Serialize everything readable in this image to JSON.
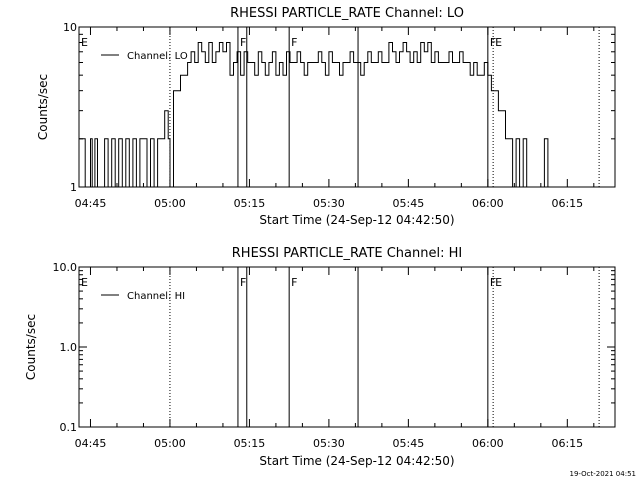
{
  "footer": {
    "timestamp": "19-Oct-2021 04:51"
  },
  "chart_data": [
    {
      "type": "line",
      "title": "RHESSI PARTICLE_RATE Channel: LO",
      "xlabel": "Start Time (24-Sep-12 04:42:50)",
      "ylabel": "Counts/sec",
      "y_scale": "log",
      "ylim": [
        1,
        10
      ],
      "y_ticks": [
        "1",
        "10"
      ],
      "xlim": [
        "04:42:50",
        "06:24:00"
      ],
      "x_ticks": [
        "04:45",
        "05:00",
        "05:15",
        "05:30",
        "05:45",
        "06:00",
        "06:15"
      ],
      "legend": {
        "placement": "top-left",
        "entries": [
          "Channel: LO"
        ]
      },
      "grid": false,
      "series": [
        {
          "name": "Channel: LO",
          "x": [
            "04:42:50",
            "04:43:30",
            "04:44:00",
            "04:44:30",
            "04:45:00",
            "04:45:20",
            "04:45:50",
            "04:46:20",
            "04:47:00",
            "04:47:40",
            "04:48:20",
            "04:49:00",
            "04:49:40",
            "04:50:20",
            "04:51:00",
            "04:51:40",
            "04:52:20",
            "04:53:00",
            "04:53:40",
            "04:54:20",
            "04:55:00",
            "04:55:40",
            "04:56:20",
            "04:57:00",
            "04:57:40",
            "04:58:20",
            "04:59:00",
            "04:59:40",
            "05:00:00",
            "05:00:40",
            "05:01:20",
            "05:02:00",
            "05:02:40",
            "05:03:20",
            "05:04:00",
            "05:04:40",
            "05:05:20",
            "05:06:00",
            "05:06:40",
            "05:07:20",
            "05:08:00",
            "05:08:40",
            "05:09:20",
            "05:10:00",
            "05:10:40",
            "05:11:20",
            "05:12:00",
            "05:12:40",
            "05:13:20",
            "05:14:00",
            "05:14:40",
            "05:15:20",
            "05:16:00",
            "05:16:40",
            "05:17:20",
            "05:18:00",
            "05:18:40",
            "05:19:20",
            "05:20:00",
            "05:20:40",
            "05:21:20",
            "05:22:00",
            "05:22:40",
            "05:23:20",
            "05:24:00",
            "05:24:40",
            "05:25:20",
            "05:26:00",
            "05:26:40",
            "05:27:20",
            "05:28:00",
            "05:28:40",
            "05:29:20",
            "05:30:00",
            "05:30:40",
            "05:31:20",
            "05:32:00",
            "05:32:40",
            "05:33:20",
            "05:34:00",
            "05:34:40",
            "05:35:20",
            "05:36:00",
            "05:36:40",
            "05:37:20",
            "05:38:00",
            "05:38:40",
            "05:39:20",
            "05:40:00",
            "05:40:40",
            "05:41:20",
            "05:42:00",
            "05:42:40",
            "05:43:20",
            "05:44:00",
            "05:44:40",
            "05:45:20",
            "05:46:00",
            "05:46:40",
            "05:47:20",
            "05:48:00",
            "05:48:40",
            "05:49:20",
            "05:50:00",
            "05:50:40",
            "05:51:20",
            "05:52:00",
            "05:52:40",
            "05:53:20",
            "05:54:00",
            "05:54:40",
            "05:55:20",
            "05:56:00",
            "05:56:40",
            "05:57:20",
            "05:58:00",
            "05:58:40",
            "05:59:20",
            "06:00:00",
            "06:00:40",
            "06:01:20",
            "06:02:00",
            "06:02:40",
            "06:03:20",
            "06:04:00",
            "06:04:40",
            "06:05:20",
            "06:06:00",
            "06:06:40",
            "06:07:20",
            "06:08:00",
            "06:08:40",
            "06:09:20",
            "06:10:00",
            "06:10:40",
            "06:11:20",
            "06:12:00"
          ],
          "values": [
            2,
            2,
            1,
            1,
            2,
            1,
            2,
            1,
            1,
            2,
            1,
            2,
            1,
            2,
            1,
            2,
            1,
            2,
            1,
            2,
            2,
            1,
            2,
            1,
            2,
            2,
            3,
            2,
            1,
            4,
            4,
            5,
            5,
            6,
            7,
            6,
            8,
            7,
            6,
            8,
            6,
            7,
            8,
            7,
            8,
            5,
            6,
            7,
            5,
            7,
            6,
            6,
            5,
            7,
            6,
            5,
            6,
            7,
            5,
            6,
            5,
            7,
            6,
            6,
            7,
            6,
            5,
            6,
            6,
            6,
            7,
            6,
            5,
            7,
            6,
            6,
            5,
            6,
            6,
            7,
            6,
            6,
            5,
            6,
            7,
            6,
            6,
            7,
            6,
            6,
            8,
            7,
            6,
            7,
            8,
            7,
            6,
            7,
            6,
            8,
            7,
            8,
            6,
            7,
            6,
            6,
            6,
            7,
            6,
            6,
            7,
            6,
            6,
            5,
            6,
            5,
            5,
            6,
            5,
            4,
            4,
            3,
            3,
            2,
            2,
            1,
            2,
            1,
            2,
            1,
            1,
            1,
            1,
            1,
            2,
            1,
            1
          ],
          "color": "#000000"
        }
      ],
      "annotations": [
        {
          "label": "E",
          "x": "04:42:50",
          "style": "text"
        },
        {
          "label": "",
          "x": "05:00:00",
          "style": "dotted"
        },
        {
          "label": "F",
          "x": "05:12:50",
          "style": "solid"
        },
        {
          "label": "",
          "x": "05:14:30",
          "style": "solid"
        },
        {
          "label": "F",
          "x": "05:22:30",
          "style": "solid"
        },
        {
          "label": "",
          "x": "05:35:30",
          "style": "solid"
        },
        {
          "label": "F",
          "x": "06:00:00",
          "style": "solid"
        },
        {
          "label": "E",
          "x": "06:01:00",
          "style": "dotted"
        },
        {
          "label": "",
          "x": "06:21:00",
          "style": "dotted"
        }
      ]
    },
    {
      "type": "line",
      "title": "RHESSI PARTICLE_RATE Channel: HI",
      "xlabel": "Start Time (24-Sep-12 04:42:50)",
      "ylabel": "Counts/sec",
      "y_scale": "log",
      "ylim": [
        0.1,
        10
      ],
      "y_ticks": [
        "0.1",
        "1.0",
        "10.0"
      ],
      "xlim": [
        "04:42:50",
        "06:24:00"
      ],
      "x_ticks": [
        "04:45",
        "05:00",
        "05:15",
        "05:30",
        "05:45",
        "06:00",
        "06:15"
      ],
      "legend": {
        "placement": "top-left",
        "entries": [
          "Channel: HI"
        ]
      },
      "grid": false,
      "series": [
        {
          "name": "Channel: HI",
          "x": [],
          "values": [],
          "color": "#000000"
        }
      ],
      "annotations": [
        {
          "label": "E",
          "x": "04:42:50",
          "style": "text"
        },
        {
          "label": "",
          "x": "05:00:00",
          "style": "dotted"
        },
        {
          "label": "F",
          "x": "05:12:50",
          "style": "solid"
        },
        {
          "label": "",
          "x": "05:14:30",
          "style": "solid"
        },
        {
          "label": "F",
          "x": "05:22:30",
          "style": "solid"
        },
        {
          "label": "",
          "x": "05:35:30",
          "style": "solid"
        },
        {
          "label": "F",
          "x": "06:00:00",
          "style": "solid"
        },
        {
          "label": "E",
          "x": "06:01:00",
          "style": "dotted"
        },
        {
          "label": "",
          "x": "06:21:00",
          "style": "dotted"
        }
      ]
    }
  ]
}
